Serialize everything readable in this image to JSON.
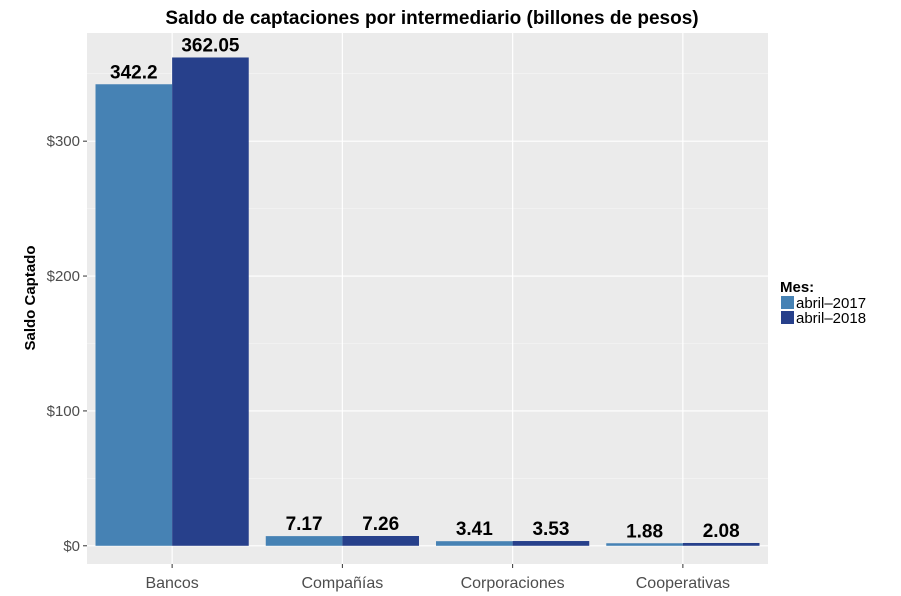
{
  "chart_data": {
    "type": "bar",
    "title": "Saldo de captaciones por intermediario (billones de pesos)",
    "xlabel": "",
    "ylabel": "Saldo Captado",
    "categories": [
      "Bancos",
      "Compañías",
      "Corporaciones",
      "Cooperativas"
    ],
    "series": [
      {
        "name": "abril–2017",
        "color": "#4682b4",
        "values": [
          342.2,
          7.17,
          3.41,
          1.88
        ]
      },
      {
        "name": "abril–2018",
        "color": "#27408b",
        "values": [
          362.05,
          7.26,
          3.53,
          2.08
        ]
      }
    ],
    "data_labels": [
      [
        "342.2",
        "7.17",
        "3.41",
        "1.88"
      ],
      [
        "362.05",
        "7.26",
        "3.53",
        "2.08"
      ]
    ],
    "ylim": [
      -13.5,
      380.2
    ],
    "yticks": [
      0,
      100,
      200,
      300
    ],
    "ytick_labels": [
      "$0",
      "$100",
      "$200",
      "$300"
    ],
    "legend": {
      "title": "Mes:",
      "position": "right"
    },
    "grid": true,
    "panel_background": "#ebebeb"
  }
}
